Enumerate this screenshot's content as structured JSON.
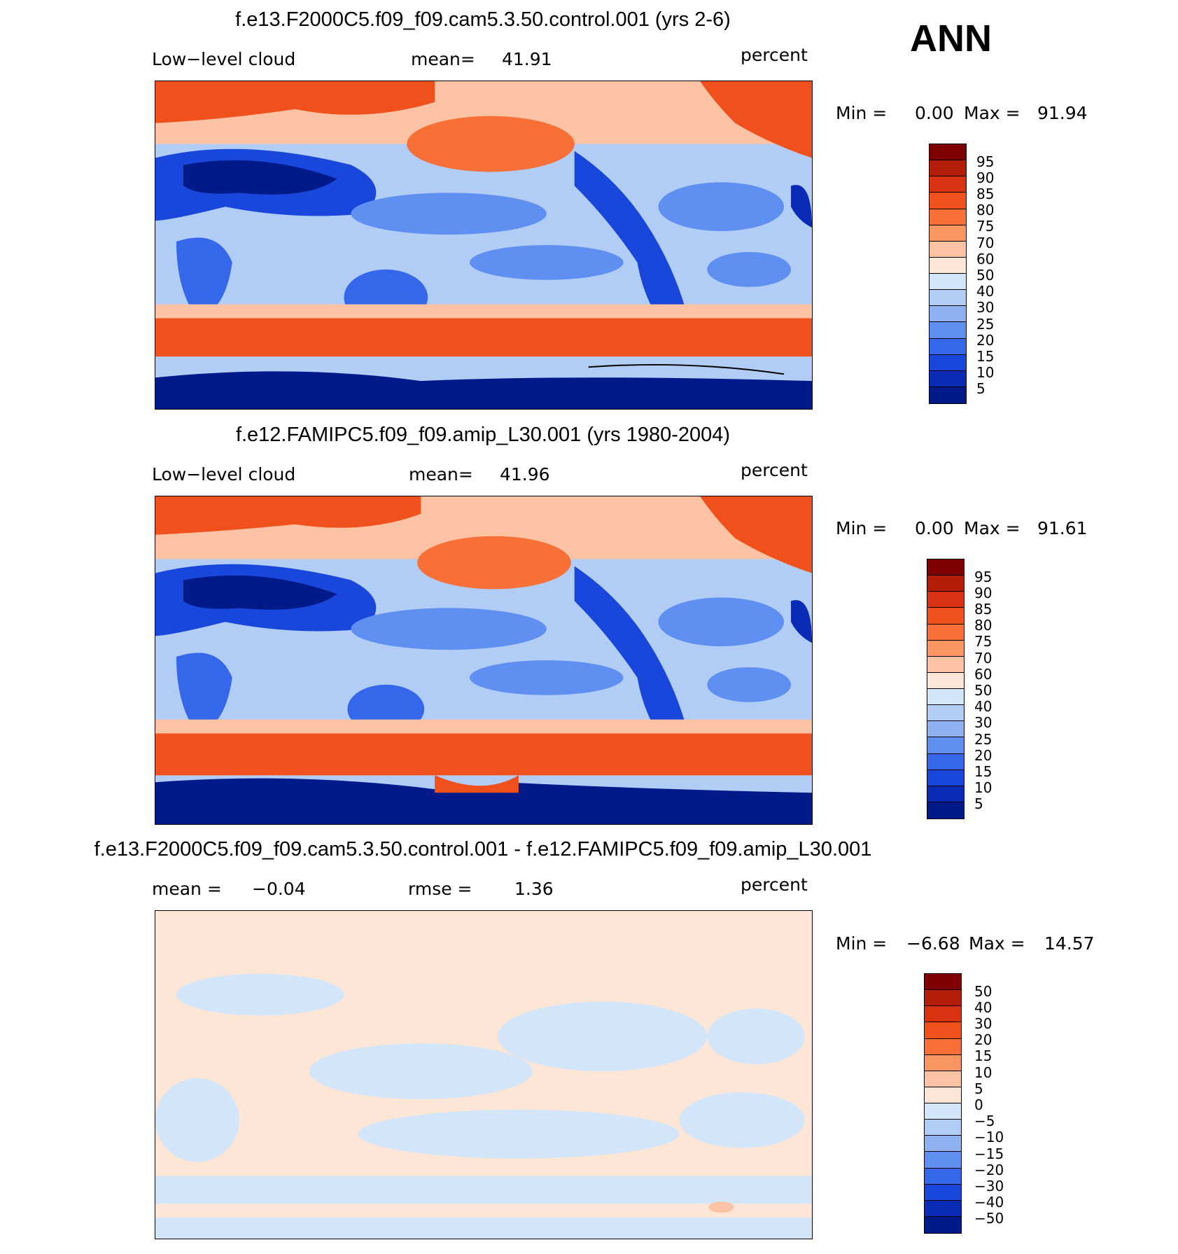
{
  "season": "ANN",
  "panels": [
    {
      "id": "top",
      "title": "f.e13.F2000C5.f09_f09.cam5.3.50.control.001 (yrs 2-6)",
      "left_label": "Low−level cloud",
      "center_label": "mean=",
      "center_value": "41.91",
      "units": "percent",
      "min_label": "Min =",
      "min_value": "0.00",
      "max_label": "Max =",
      "max_value": "91.94",
      "colorbar_levels": [
        "95",
        "90",
        "85",
        "80",
        "75",
        "70",
        "60",
        "50",
        "40",
        "30",
        "25",
        "20",
        "15",
        "10",
        "5"
      ]
    },
    {
      "id": "middle",
      "title": "f.e12.FAMIPC5.f09_f09.amip_L30.001 (yrs 1980-2004)",
      "left_label": "Low−level cloud",
      "center_label": "mean=",
      "center_value": "41.96",
      "units": "percent",
      "min_label": "Min =",
      "min_value": "0.00",
      "max_label": "Max =",
      "max_value": "91.61",
      "colorbar_levels": [
        "95",
        "90",
        "85",
        "80",
        "75",
        "70",
        "60",
        "50",
        "40",
        "30",
        "25",
        "20",
        "15",
        "10",
        "5"
      ]
    },
    {
      "id": "diff",
      "title": "f.e13.F2000C5.f09_f09.cam5.3.50.control.001 - f.e12.FAMIPC5.f09_f09.amip_L30.001",
      "left_label": "mean =",
      "left_value": "−0.04",
      "center_label": "rmse =",
      "center_value": "1.36",
      "units": "percent",
      "min_label": "Min =",
      "min_value": "−6.68",
      "max_label": "Max =",
      "max_value": "14.57",
      "colorbar_levels": [
        "50",
        "40",
        "30",
        "20",
        "15",
        "10",
        "5",
        "0",
        "−5",
        "−10",
        "−15",
        "−20",
        "−30",
        "−40",
        "−50"
      ]
    }
  ],
  "colors": {
    "scale": [
      "#7f0000",
      "#b31d0a",
      "#d93212",
      "#f0501c",
      "#f87038",
      "#f99661",
      "#fbc2a4",
      "#fde6d6",
      "#d3e5f8",
      "#b1cdf5",
      "#8db1f1",
      "#5f8ff0",
      "#3467ea",
      "#1a47db",
      "#0a2bb5",
      "#001a8a"
    ]
  }
}
